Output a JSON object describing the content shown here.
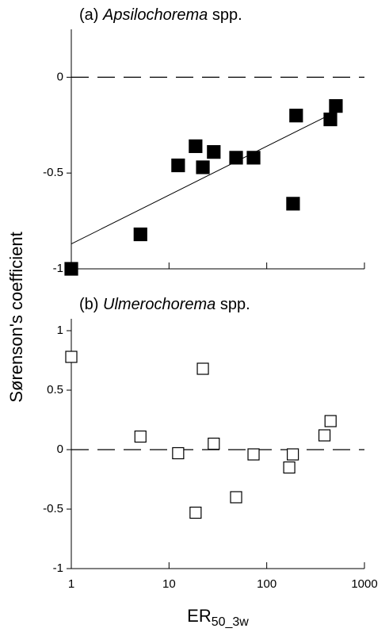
{
  "chart_data": [
    {
      "type": "scatter",
      "title_prefix": "(a)",
      "title_genus": "Apsilochorema",
      "title_suffix": "spp.",
      "ylabel": "Sørenson's coefficient",
      "xscale": "log",
      "xlim": [
        1,
        1000
      ],
      "xticks": [
        1,
        10,
        100,
        1000
      ],
      "show_xtick_labels": false,
      "ylim": [
        -1,
        0.25
      ],
      "yticks": [
        -1,
        -0.5,
        0
      ],
      "hline": 0,
      "series": [
        {
          "style": "marker",
          "marker": "filled",
          "color": "#000000",
          "x": [
            1,
            5.1,
            12.4,
            18.7,
            22.2,
            28.7,
            48.6,
            73.3,
            186,
            200,
            448,
            510
          ],
          "values": [
            -1,
            -0.82,
            -0.46,
            -0.36,
            -0.47,
            -0.39,
            -0.42,
            -0.42,
            -0.66,
            -0.2,
            -0.22,
            -0.15
          ]
        },
        {
          "style": "line",
          "color": "#000000",
          "x": [
            1,
            510
          ],
          "values": [
            -0.87,
            -0.18
          ]
        }
      ]
    },
    {
      "type": "scatter",
      "title_prefix": "(b)",
      "title_genus": "Ulmerochorema",
      "title_suffix": "spp.",
      "xlabel": "ER",
      "xlabel_sub": "50_3w",
      "xscale": "log",
      "xlim": [
        1,
        1000
      ],
      "xticks": [
        1,
        10,
        100,
        1000
      ],
      "show_xtick_labels": true,
      "ylim": [
        -1,
        1.1
      ],
      "yticks": [
        -1,
        -0.5,
        0,
        0.5,
        1
      ],
      "hline": 0,
      "series": [
        {
          "style": "marker",
          "marker": "open",
          "color": "#000000",
          "x": [
            1,
            5.1,
            12.4,
            18.7,
            22.2,
            28.7,
            48.6,
            73.3,
            170,
            185,
            390,
            450
          ],
          "values": [
            0.78,
            0.11,
            -0.03,
            -0.53,
            0.68,
            0.05,
            -0.4,
            -0.04,
            -0.15,
            -0.04,
            0.12,
            0.24
          ]
        }
      ]
    }
  ]
}
